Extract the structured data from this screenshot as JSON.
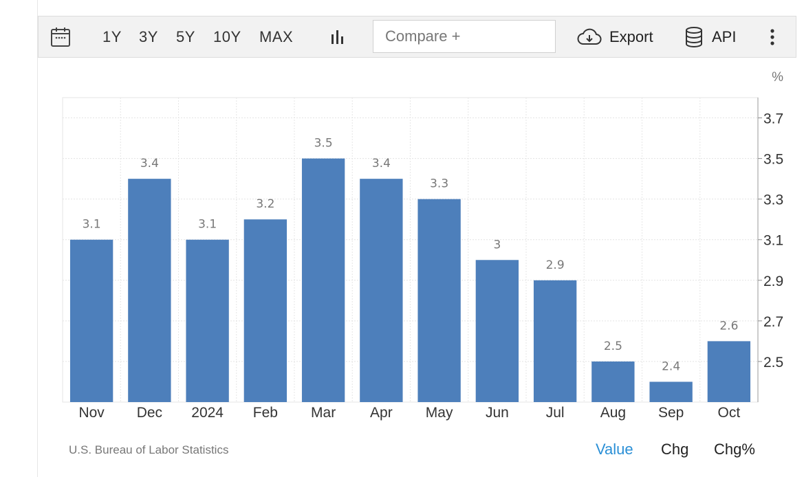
{
  "toolbar": {
    "icons": {
      "calendar": "calendar-icon",
      "chart_type": "bar-chart-icon",
      "export": "cloud-download-icon",
      "api": "database-icon",
      "more": "more-vertical-icon"
    },
    "ranges": [
      "1Y",
      "3Y",
      "5Y",
      "10Y",
      "MAX"
    ],
    "compare_placeholder": "Compare +",
    "export_label": "Export",
    "api_label": "API"
  },
  "chart_data": {
    "type": "bar",
    "categories": [
      "Nov",
      "Dec",
      "2024",
      "Feb",
      "Mar",
      "Apr",
      "May",
      "Jun",
      "Jul",
      "Aug",
      "Sep",
      "Oct"
    ],
    "values": [
      3.1,
      3.4,
      3.1,
      3.2,
      3.5,
      3.4,
      3.3,
      3.0,
      2.9,
      2.5,
      2.4,
      2.6
    ],
    "data_labels": [
      "3.1",
      "3.4",
      "3.1",
      "3.2",
      "3.5",
      "3.4",
      "3.3",
      "3",
      "2.9",
      "2.5",
      "2.4",
      "2.6"
    ],
    "y_unit": "%",
    "y_ticks": [
      "3.7",
      "3.5",
      "3.3",
      "3.1",
      "2.9",
      "2.7",
      "2.5"
    ],
    "ylim": [
      2.3,
      3.8
    ],
    "axis_side": "right",
    "grid": true,
    "bar_color": "#4d7fbb"
  },
  "footer": {
    "source": "U.S. Bureau of Labor Statistics",
    "tabs": [
      "Value",
      "Chg",
      "Chg%"
    ],
    "active_tab": "Value",
    "active_color": "#2a8fd6"
  }
}
